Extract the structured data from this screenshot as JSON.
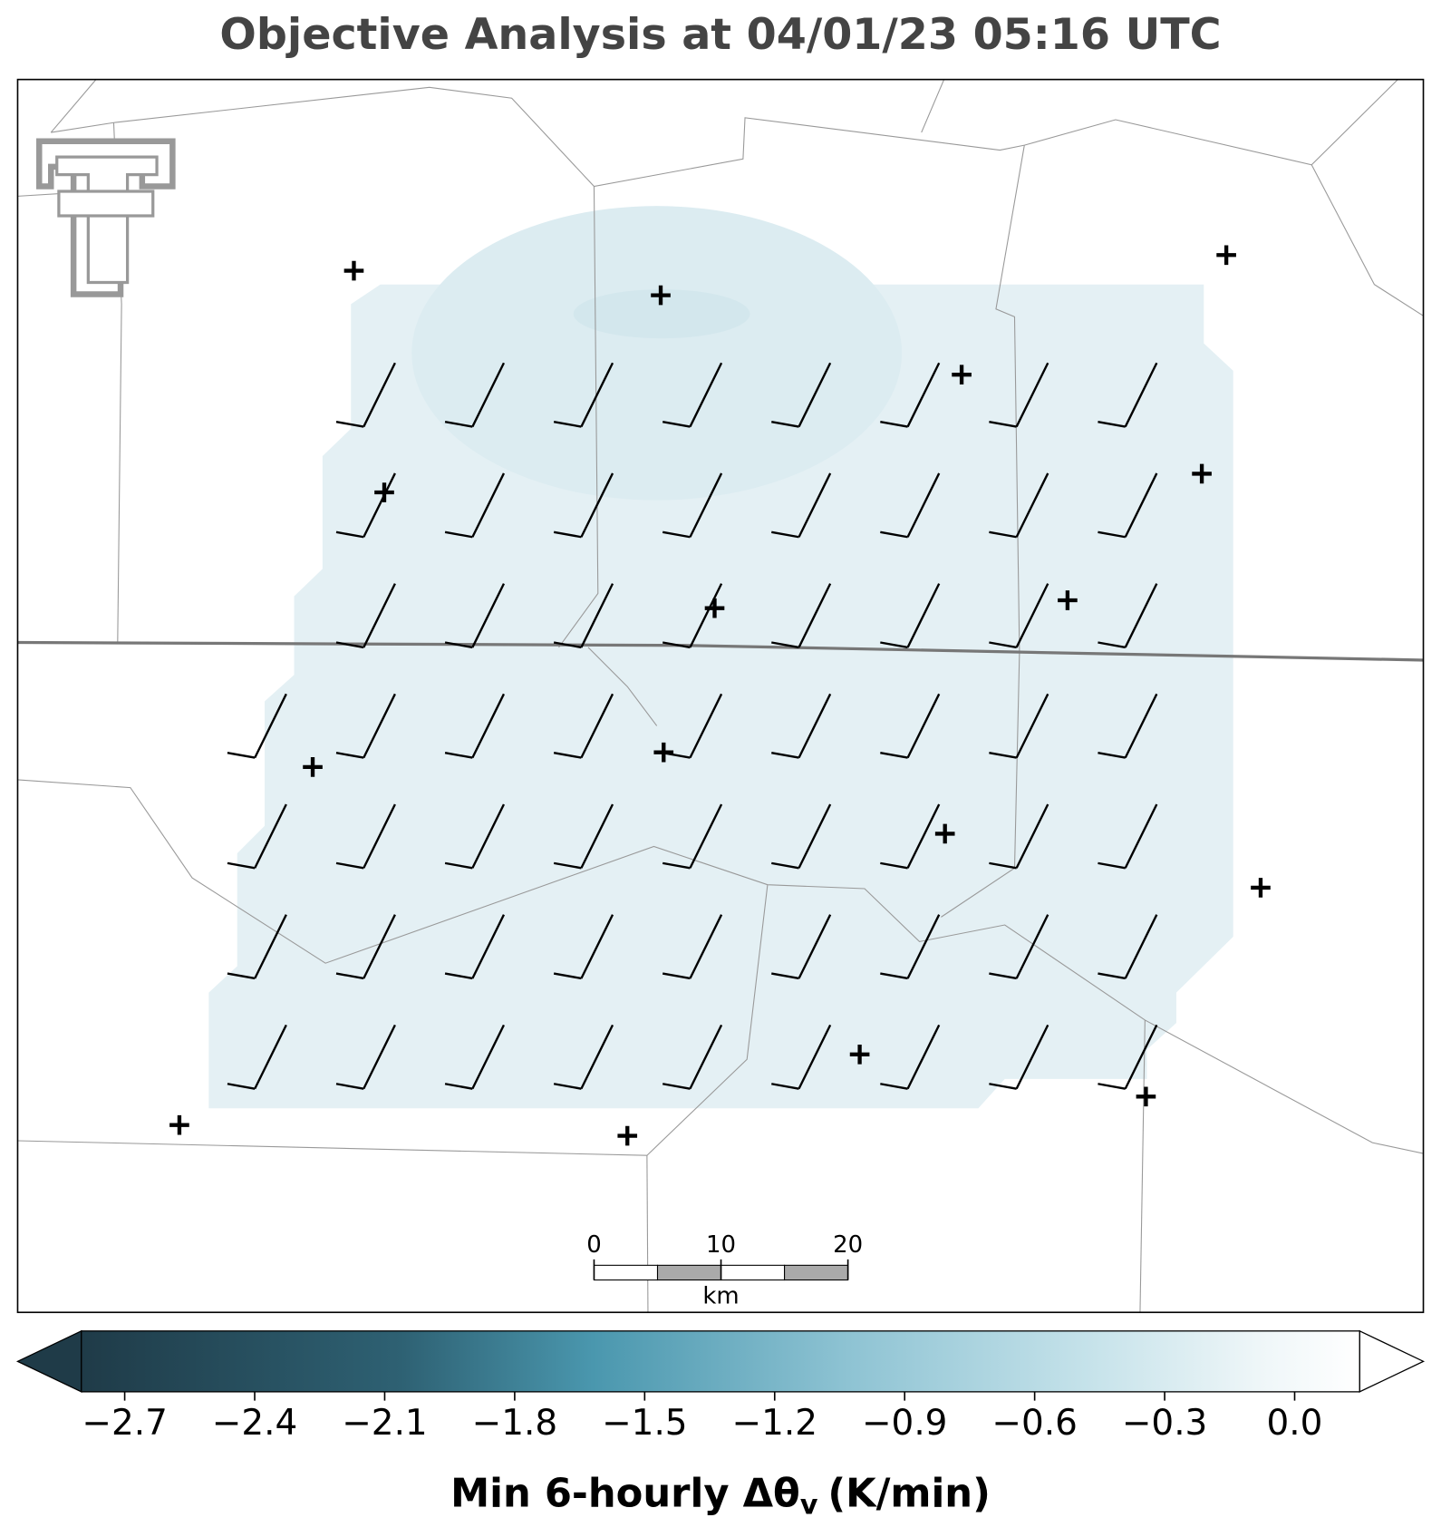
{
  "title": "Objective Analysis at 04/01/23 05:16 UTC",
  "colorbar": {
    "label": {
      "text": "Min 6-hourly Δθ",
      "subscript": "v",
      "unit": "(K/min)"
    },
    "clim": [
      -2.8,
      0.15
    ],
    "ticks": [
      {
        "value": -2.7,
        "label": "−2.7"
      },
      {
        "value": -2.4,
        "label": "−2.4"
      },
      {
        "value": -2.1,
        "label": "−2.1"
      },
      {
        "value": -1.8,
        "label": "−1.8"
      },
      {
        "value": -1.5,
        "label": "−1.5"
      },
      {
        "value": -1.2,
        "label": "−1.2"
      },
      {
        "value": -0.9,
        "label": "−0.9"
      },
      {
        "value": -0.6,
        "label": "−0.6"
      },
      {
        "value": -0.3,
        "label": "−0.3"
      },
      {
        "value": 0.0,
        "label": "0.0"
      }
    ]
  },
  "scale_bar": {
    "ticks": [
      0,
      10,
      20
    ],
    "unit": "km"
  }
}
